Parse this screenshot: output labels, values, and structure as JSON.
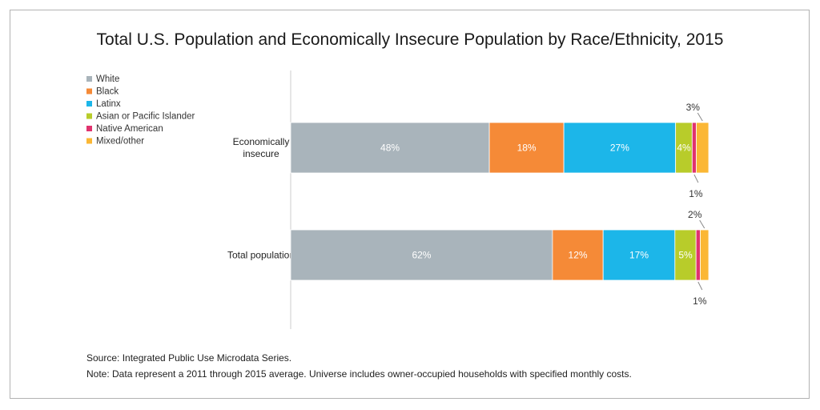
{
  "chart_data": {
    "type": "bar",
    "orientation": "horizontal",
    "stacked": true,
    "title": "Total U.S. Population and Economically Insecure Population by Race/Ethnicity, 2015",
    "categories": [
      [
        "Economically",
        "insecure"
      ],
      [
        "Total population"
      ]
    ],
    "series": [
      {
        "name": "White",
        "color": "#a9b4bb",
        "values": [
          48,
          62
        ],
        "labels": [
          "48%",
          "62%"
        ],
        "label_color": "#ffffff"
      },
      {
        "name": "Black",
        "color": "#f58a37",
        "values": [
          18,
          12
        ],
        "labels": [
          "18%",
          "12%"
        ],
        "label_color": "#ffffff"
      },
      {
        "name": "Latinx",
        "color": "#1cb6e9",
        "values": [
          27,
          17
        ],
        "labels": [
          "27%",
          "17%"
        ],
        "label_color": "#ffffff"
      },
      {
        "name": "Asian or Pacific Islander",
        "color": "#b8cc2a",
        "values": [
          4,
          5
        ],
        "labels": [
          "4%",
          "5%"
        ],
        "label_color": "#ffffff"
      },
      {
        "name": "Native American",
        "color": "#e0336e",
        "values": [
          1,
          1
        ],
        "labels": [
          "1%",
          "1%"
        ],
        "label_color": "#333333"
      },
      {
        "name": "Mixed/other",
        "color": "#fbb734",
        "values": [
          3,
          2
        ],
        "labels": [
          "3%",
          "2%"
        ],
        "label_color": "#333333"
      }
    ],
    "xlim": [
      0,
      100
    ],
    "grid": false,
    "legend": "top-left",
    "source": "Source: Integrated Public Use Microdata Series.",
    "note": "Note: Data represent a 2011 through 2015 average. Universe includes owner-occupied households with specified monthly costs."
  }
}
